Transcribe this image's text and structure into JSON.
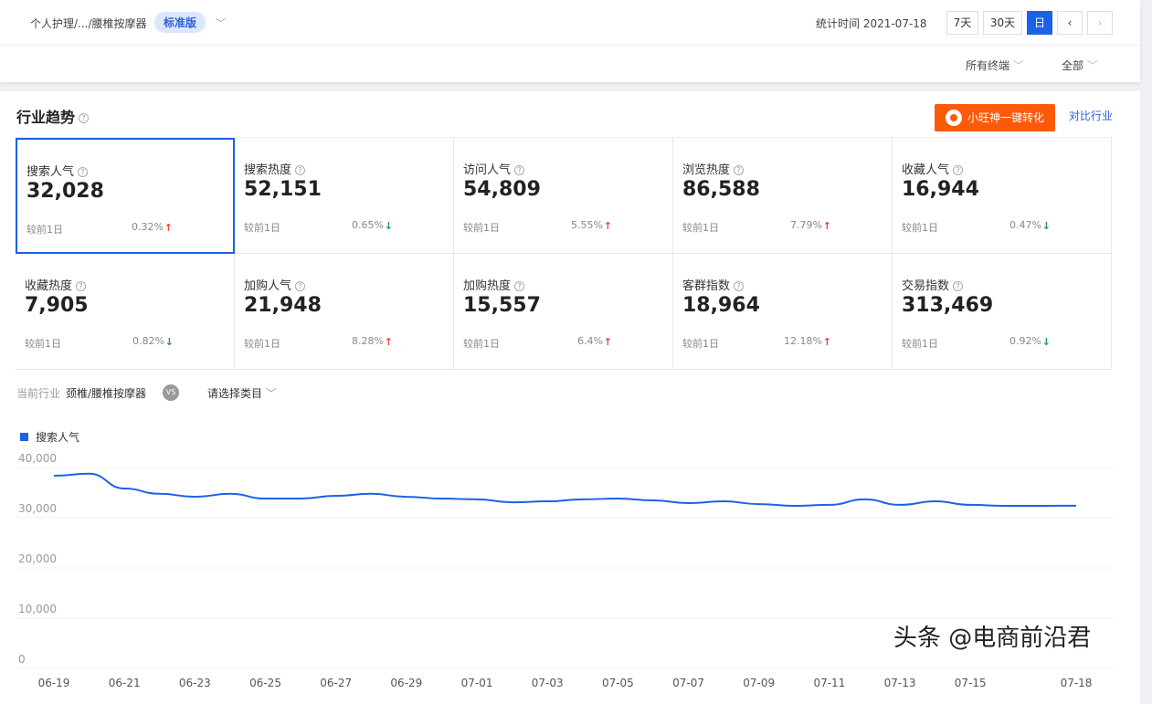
{
  "header": {
    "breadcrumb": "个人护理/.../腰椎按摩器",
    "edition": "标准版",
    "stat_time": "统计时间 2021-07-18",
    "ranges": [
      "7天",
      "30天",
      "日"
    ],
    "active_range": "日",
    "terminal": "所有终端",
    "scope": "全部"
  },
  "section": {
    "title": "行业趋势",
    "convert_button": "小旺神一键转化",
    "compare_link": "对比行业"
  },
  "metrics": [
    {
      "label": "搜索人气",
      "value": "32,028",
      "compare": "较前1日",
      "pct": "0.32%",
      "dir": "up"
    },
    {
      "label": "搜索热度",
      "value": "52,151",
      "compare": "较前1日",
      "pct": "0.65%",
      "dir": "down"
    },
    {
      "label": "访问人气",
      "value": "54,809",
      "compare": "较前1日",
      "pct": "5.55%",
      "dir": "up"
    },
    {
      "label": "浏览热度",
      "value": "86,588",
      "compare": "较前1日",
      "pct": "7.79%",
      "dir": "up"
    },
    {
      "label": "收藏人气",
      "value": "16,944",
      "compare": "较前1日",
      "pct": "0.47%",
      "dir": "down"
    },
    {
      "label": "收藏热度",
      "value": "7,905",
      "compare": "较前1日",
      "pct": "0.82%",
      "dir": "down"
    },
    {
      "label": "加购人气",
      "value": "21,948",
      "compare": "较前1日",
      "pct": "8.28%",
      "dir": "up"
    },
    {
      "label": "加购热度",
      "value": "15,557",
      "compare": "较前1日",
      "pct": "6.4%",
      "dir": "up"
    },
    {
      "label": "客群指数",
      "value": "18,964",
      "compare": "较前1日",
      "pct": "12.18%",
      "dir": "up"
    },
    {
      "label": "交易指数",
      "value": "313,469",
      "compare": "较前1日",
      "pct": "0.92%",
      "dir": "down"
    }
  ],
  "industry": {
    "label": "当前行业",
    "value": "颈椎/腰椎按摩器",
    "vs": "VS",
    "select": "请选择类目"
  },
  "chart_data": {
    "type": "line",
    "legend_position": "top-left",
    "series": [
      {
        "name": "搜索人气",
        "color": "#1b62e6",
        "values": [
          38000,
          38400,
          35450,
          34400,
          33800,
          34400,
          33450,
          33450,
          34000,
          34400,
          33800,
          33450,
          33300,
          32700,
          32900,
          33300,
          33450,
          33100,
          32550,
          32900,
          32350,
          32000,
          32200,
          33300,
          32200,
          32900,
          32200,
          32000,
          32000,
          32028
        ]
      }
    ],
    "x": [
      "06-19",
      "06-20",
      "06-21",
      "06-22",
      "06-23",
      "06-24",
      "06-25",
      "06-26",
      "06-27",
      "06-28",
      "06-29",
      "06-30",
      "07-01",
      "07-02",
      "07-03",
      "07-04",
      "07-05",
      "07-06",
      "07-07",
      "07-08",
      "07-09",
      "07-10",
      "07-11",
      "07-12",
      "07-13",
      "07-14",
      "07-15",
      "07-16",
      "07-17",
      "07-18"
    ],
    "x_tick_labels": [
      "06-19",
      "06-21",
      "06-23",
      "06-25",
      "06-27",
      "06-29",
      "07-01",
      "07-03",
      "07-05",
      "07-07",
      "07-09",
      "07-11",
      "07-13",
      "07-15",
      "07-18"
    ],
    "y_tick_labels": [
      "40,000",
      "30,000",
      "20,000",
      "10,000",
      "0"
    ],
    "ylim": [
      0,
      40000
    ],
    "grid": true
  },
  "watermark": "头条 @电商前沿君"
}
